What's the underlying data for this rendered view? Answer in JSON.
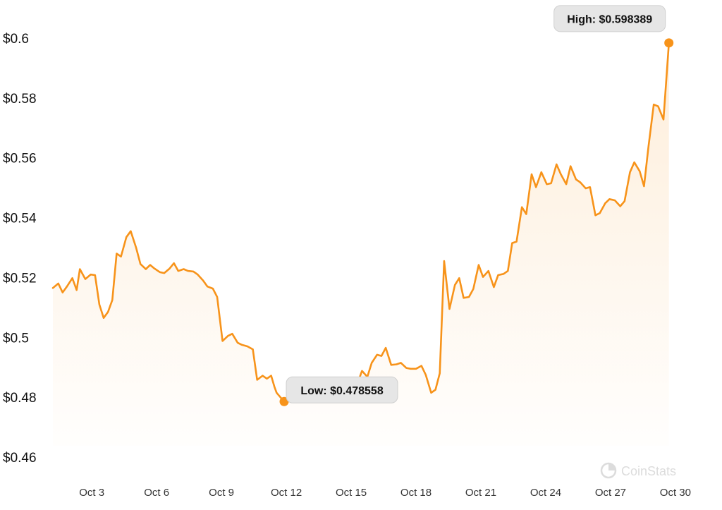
{
  "chart_data": {
    "type": "area",
    "title": "",
    "xlabel": "",
    "ylabel": "",
    "grid": false,
    "ylim": [
      0.46,
      0.6
    ],
    "y_ticks": [
      "$0.6",
      "$0.58",
      "$0.56",
      "$0.54",
      "$0.52",
      "$0.5",
      "$0.48",
      "$0.46"
    ],
    "y_tick_values": [
      0.6,
      0.58,
      0.56,
      0.54,
      0.52,
      0.5,
      0.48,
      0.46
    ],
    "x_ticks": [
      "Oct 3",
      "Oct 6",
      "Oct 9",
      "Oct 12",
      "Oct 15",
      "Oct 18",
      "Oct 21",
      "Oct 24",
      "Oct 27",
      "Oct 30"
    ],
    "x_tick_values": [
      3,
      6,
      9,
      12,
      15,
      18,
      21,
      24,
      27,
      30
    ],
    "xlim": [
      1.2,
      31.7
    ],
    "series": [
      {
        "color": "#f7931a",
        "points": [
          [
            1.2,
            0.5165
          ],
          [
            1.45,
            0.518
          ],
          [
            1.65,
            0.515
          ],
          [
            1.85,
            0.517
          ],
          [
            2.1,
            0.5198
          ],
          [
            2.3,
            0.5158
          ],
          [
            2.45,
            0.5228
          ],
          [
            2.7,
            0.5195
          ],
          [
            2.95,
            0.521
          ],
          [
            3.15,
            0.5208
          ],
          [
            3.35,
            0.511
          ],
          [
            3.55,
            0.5065
          ],
          [
            3.75,
            0.5085
          ],
          [
            3.95,
            0.5125
          ],
          [
            4.15,
            0.528
          ],
          [
            4.35,
            0.527
          ],
          [
            4.6,
            0.5335
          ],
          [
            4.8,
            0.5355
          ],
          [
            5.05,
            0.53
          ],
          [
            5.25,
            0.5245
          ],
          [
            5.5,
            0.5228
          ],
          [
            5.7,
            0.5242
          ],
          [
            5.9,
            0.523
          ],
          [
            6.15,
            0.5218
          ],
          [
            6.35,
            0.5215
          ],
          [
            6.6,
            0.523
          ],
          [
            6.8,
            0.5248
          ],
          [
            7.0,
            0.5222
          ],
          [
            7.25,
            0.5228
          ],
          [
            7.45,
            0.5222
          ],
          [
            7.7,
            0.522
          ],
          [
            7.9,
            0.521
          ],
          [
            8.15,
            0.519
          ],
          [
            8.35,
            0.517
          ],
          [
            8.6,
            0.5163
          ],
          [
            8.8,
            0.5135
          ],
          [
            9.05,
            0.4988
          ],
          [
            9.3,
            0.5005
          ],
          [
            9.5,
            0.5012
          ],
          [
            9.75,
            0.4982
          ],
          [
            9.95,
            0.4975
          ],
          [
            10.2,
            0.497
          ],
          [
            10.45,
            0.496
          ],
          [
            10.65,
            0.4858
          ],
          [
            10.9,
            0.4872
          ],
          [
            11.1,
            0.4862
          ],
          [
            11.3,
            0.4872
          ],
          [
            11.45,
            0.4835
          ],
          [
            11.55,
            0.4815
          ],
          [
            11.9,
            0.478558
          ],
          [
            12.2,
            0.4795
          ],
          [
            12.45,
            0.4808
          ],
          [
            12.7,
            0.483
          ],
          [
            12.95,
            0.4842
          ],
          [
            13.2,
            0.4848
          ],
          [
            13.45,
            0.4852
          ],
          [
            13.7,
            0.4858
          ],
          [
            13.95,
            0.4862
          ],
          [
            14.2,
            0.4852
          ],
          [
            14.35,
            0.4845
          ],
          [
            14.55,
            0.486
          ],
          [
            14.7,
            0.4862
          ],
          [
            14.95,
            0.4855
          ],
          [
            15.1,
            0.4845
          ],
          [
            15.35,
            0.4858
          ],
          [
            15.5,
            0.4888
          ],
          [
            15.75,
            0.4868
          ],
          [
            15.95,
            0.4915
          ],
          [
            16.2,
            0.4942
          ],
          [
            16.4,
            0.4938
          ],
          [
            16.6,
            0.4965
          ],
          [
            16.85,
            0.4908
          ],
          [
            17.1,
            0.491
          ],
          [
            17.3,
            0.4915
          ],
          [
            17.55,
            0.4898
          ],
          [
            17.75,
            0.4895
          ],
          [
            18.0,
            0.4895
          ],
          [
            18.25,
            0.4905
          ],
          [
            18.45,
            0.4875
          ],
          [
            18.7,
            0.4815
          ],
          [
            18.9,
            0.4825
          ],
          [
            19.1,
            0.488
          ],
          [
            19.3,
            0.5255
          ],
          [
            19.55,
            0.5095
          ],
          [
            19.8,
            0.5175
          ],
          [
            20.0,
            0.5198
          ],
          [
            20.2,
            0.5132
          ],
          [
            20.45,
            0.5135
          ],
          [
            20.65,
            0.5162
          ],
          [
            20.9,
            0.5242
          ],
          [
            21.1,
            0.5202
          ],
          [
            21.35,
            0.5222
          ],
          [
            21.6,
            0.5168
          ],
          [
            21.8,
            0.5208
          ],
          [
            22.05,
            0.5212
          ],
          [
            22.25,
            0.5222
          ],
          [
            22.45,
            0.5315
          ],
          [
            22.65,
            0.532
          ],
          [
            22.9,
            0.5435
          ],
          [
            23.1,
            0.5412
          ],
          [
            23.35,
            0.5545
          ],
          [
            23.55,
            0.5502
          ],
          [
            23.8,
            0.5552
          ],
          [
            24.05,
            0.5512
          ],
          [
            24.25,
            0.5515
          ],
          [
            24.5,
            0.5578
          ],
          [
            24.7,
            0.5545
          ],
          [
            24.95,
            0.5512
          ],
          [
            25.15,
            0.5572
          ],
          [
            25.4,
            0.5528
          ],
          [
            25.6,
            0.5518
          ],
          [
            25.85,
            0.5498
          ],
          [
            26.05,
            0.5502
          ],
          [
            26.3,
            0.5408
          ],
          [
            26.5,
            0.5415
          ],
          [
            26.75,
            0.5448
          ],
          [
            26.95,
            0.5462
          ],
          [
            27.2,
            0.5458
          ],
          [
            27.45,
            0.5438
          ],
          [
            27.65,
            0.5455
          ],
          [
            27.9,
            0.5552
          ],
          [
            28.1,
            0.5585
          ],
          [
            28.35,
            0.5555
          ],
          [
            28.55,
            0.5505
          ],
          [
            28.75,
            0.5635
          ],
          [
            29.0,
            0.5778
          ],
          [
            29.2,
            0.5772
          ],
          [
            29.45,
            0.5728
          ],
          [
            29.7,
            0.598389
          ]
        ]
      }
    ],
    "annotations": [
      {
        "label": "Low: $0.478558",
        "x": 11.9,
        "y": 0.478558
      },
      {
        "label": "High: $0.598389",
        "x": 29.7,
        "y": 0.598389
      }
    ],
    "watermark": {
      "text": "CoinStats",
      "icon": "pie-chart-icon"
    }
  }
}
